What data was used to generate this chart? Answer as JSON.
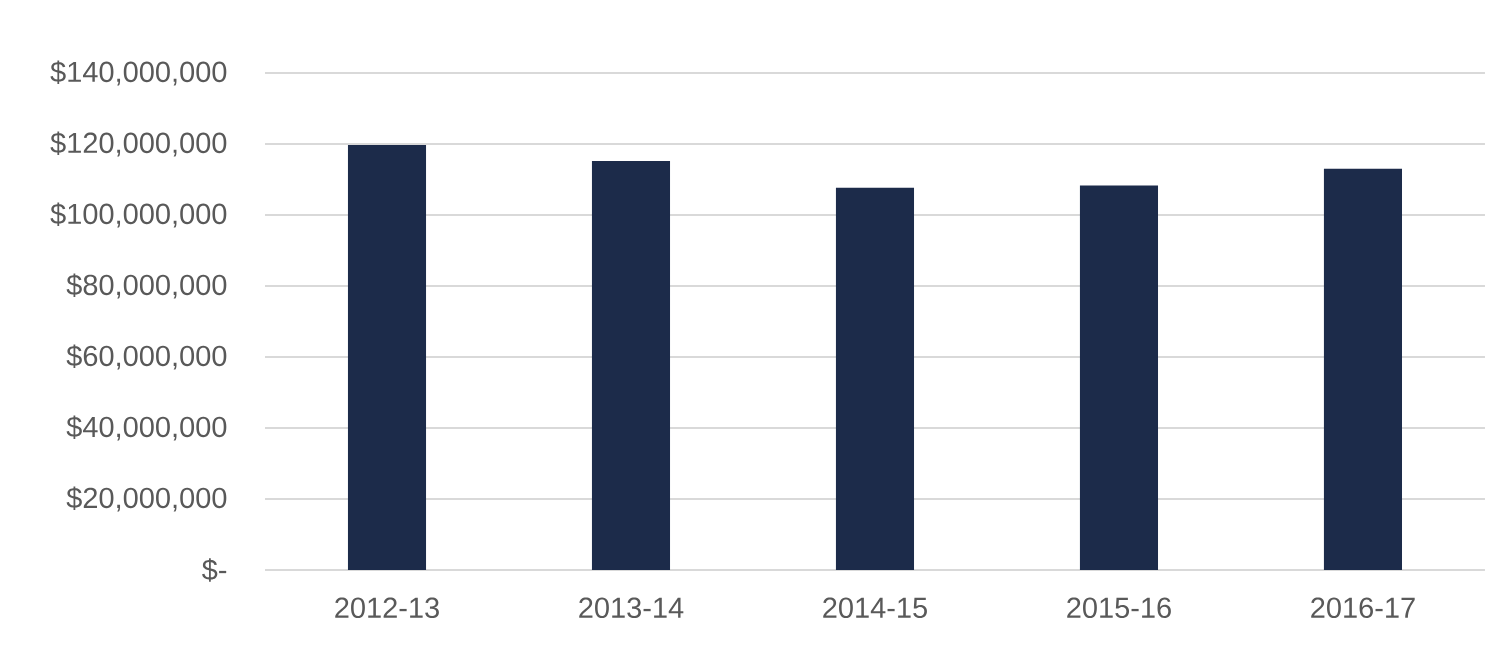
{
  "chart_data": {
    "type": "bar",
    "categories": [
      "2012-13",
      "2013-14",
      "2014-15",
      "2015-16",
      "2016-17"
    ],
    "values": [
      119700000,
      115200000,
      107700000,
      108300000,
      113000000
    ],
    "color": "#1c2b4a",
    "ylim": [
      0,
      140000000
    ],
    "yticks": [
      {
        "value": 0,
        "label": "$-"
      },
      {
        "value": 20000000,
        "label": "$20,000,000"
      },
      {
        "value": 40000000,
        "label": "$40,000,000"
      },
      {
        "value": 60000000,
        "label": "$60,000,000"
      },
      {
        "value": 80000000,
        "label": "$80,000,000"
      },
      {
        "value": 100000000,
        "label": "$100,000,000"
      },
      {
        "value": 120000000,
        "label": "$120,000,000"
      },
      {
        "value": 140000000,
        "label": "$140,000,000"
      }
    ],
    "grid": "y"
  }
}
